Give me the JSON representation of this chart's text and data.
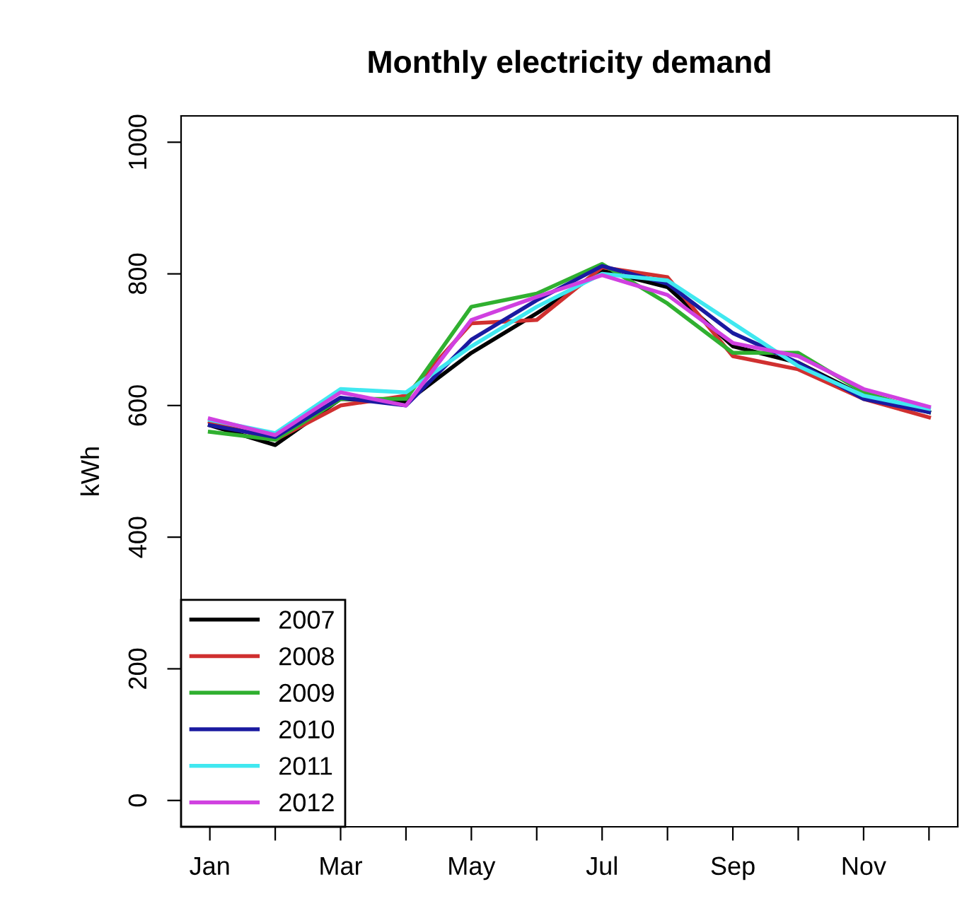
{
  "chart_data": {
    "type": "line",
    "title": "Monthly electricity demand",
    "ylabel": "kWh",
    "categories": [
      "Jan",
      null,
      "Mar",
      null,
      "May",
      null,
      "Jul",
      null,
      "Sep",
      null,
      "Nov",
      null
    ],
    "series": [
      {
        "name": "2007",
        "color": "#000000",
        "values": [
          570,
          540,
          610,
          605,
          680,
          740,
          805,
          780,
          690,
          665,
          615,
          590
        ]
      },
      {
        "name": "2008",
        "color": "#d03030",
        "values": [
          575,
          548,
          600,
          615,
          725,
          730,
          810,
          795,
          675,
          655,
          610,
          582
        ]
      },
      {
        "name": "2009",
        "color": "#30b030",
        "values": [
          560,
          548,
          610,
          610,
          750,
          770,
          815,
          755,
          680,
          680,
          620,
          590
        ]
      },
      {
        "name": "2010",
        "color": "#1a1aa0",
        "values": [
          570,
          552,
          612,
          600,
          700,
          760,
          812,
          785,
          710,
          665,
          610,
          590
        ]
      },
      {
        "name": "2011",
        "color": "#40e8f0",
        "values": [
          578,
          558,
          625,
          620,
          690,
          750,
          800,
          790,
          725,
          660,
          615,
          595
        ]
      },
      {
        "name": "2012",
        "color": "#d040e0",
        "values": [
          580,
          555,
          620,
          600,
          730,
          765,
          798,
          768,
          695,
          675,
          625,
          598
        ]
      }
    ],
    "ylim": [
      -40,
      1040
    ],
    "yticks": [
      0,
      200,
      400,
      600,
      800,
      1000
    ],
    "grid": false,
    "legend": "bottom left",
    "marker": "none",
    "line_style": "solid"
  }
}
